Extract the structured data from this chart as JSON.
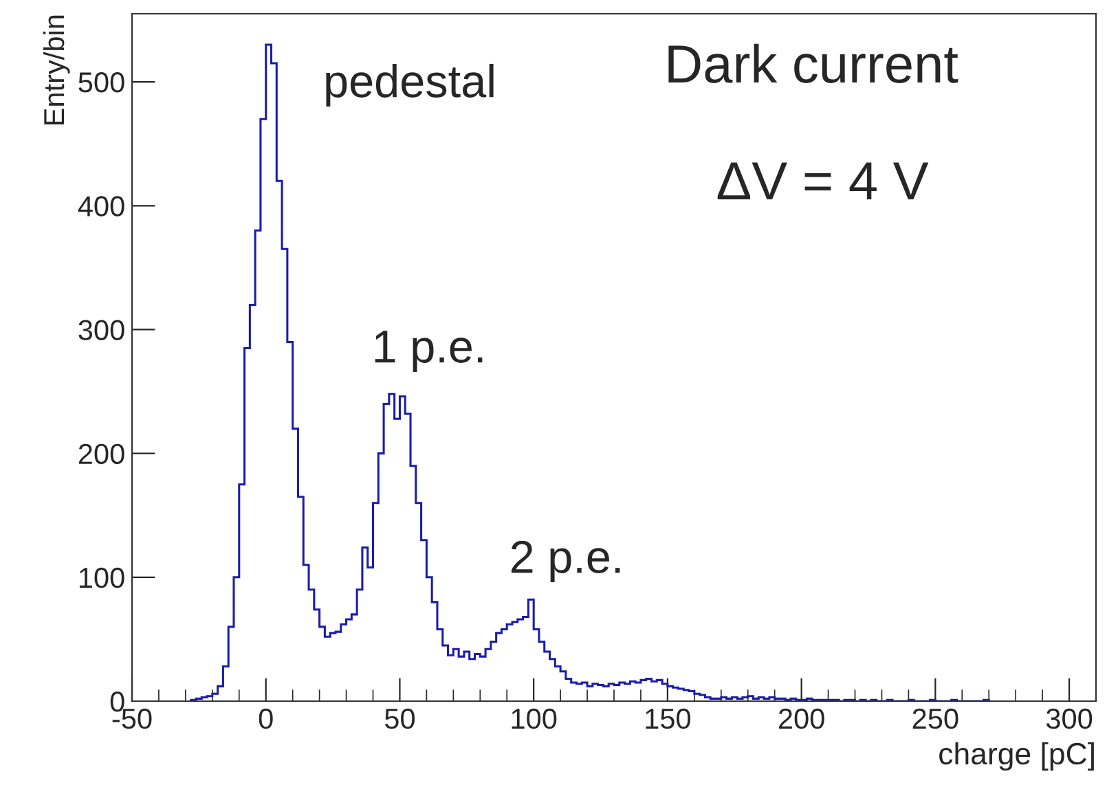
{
  "chart_data": {
    "type": "histogram",
    "title": "Dark current",
    "subtitle": "ΔV = 4 V",
    "xlabel": "charge [pC]",
    "ylabel": "Entry/bin",
    "color": "#1c1caa",
    "bins": [
      -28,
      -26,
      -24,
      -22,
      -20,
      -18,
      -16,
      -14,
      -12,
      -10,
      -8,
      -6,
      -4,
      -2,
      0,
      2,
      4,
      6,
      8,
      10,
      12,
      14,
      16,
      18,
      20,
      22,
      24,
      26,
      28,
      30,
      32,
      34,
      36,
      38,
      40,
      42,
      44,
      46,
      48,
      50,
      52,
      54,
      56,
      58,
      60,
      62,
      64,
      66,
      68,
      70,
      72,
      74,
      76,
      78,
      80,
      82,
      84,
      86,
      88,
      90,
      92,
      94,
      96,
      98,
      100,
      102,
      104,
      106,
      108,
      110,
      112,
      114,
      116,
      118,
      120,
      122,
      124,
      126,
      128,
      130,
      132,
      134,
      136,
      138,
      140,
      142,
      144,
      146,
      148,
      150,
      152,
      154,
      156,
      158,
      160,
      162,
      164,
      166,
      168,
      170,
      172,
      174,
      176,
      178,
      180,
      182,
      184,
      186,
      188,
      190,
      192,
      194,
      196,
      198,
      200,
      202,
      204,
      206,
      208,
      210,
      212,
      214,
      216,
      218,
      220,
      222,
      224,
      226,
      228,
      230,
      232,
      234,
      236,
      238,
      240,
      242,
      244,
      246,
      248,
      250,
      252,
      254,
      256,
      258,
      260,
      262,
      264,
      266,
      268,
      270
    ],
    "values": [
      1,
      2,
      3,
      4,
      6,
      12,
      28,
      60,
      100,
      175,
      285,
      320,
      380,
      470,
      530,
      515,
      420,
      365,
      290,
      220,
      165,
      110,
      90,
      74,
      60,
      52,
      55,
      56,
      62,
      66,
      70,
      90,
      124,
      108,
      160,
      200,
      240,
      248,
      228,
      246,
      232,
      190,
      160,
      130,
      100,
      80,
      58,
      45,
      37,
      42,
      36,
      40,
      34,
      38,
      36,
      42,
      48,
      55,
      58,
      62,
      64,
      66,
      68,
      82,
      58,
      48,
      40,
      34,
      28,
      24,
      18,
      15,
      14,
      15,
      12,
      14,
      13,
      12,
      14,
      13,
      15,
      14,
      16,
      15,
      17,
      18,
      16,
      17,
      14,
      12,
      11,
      10,
      9,
      8,
      6,
      5,
      3,
      2,
      2,
      3,
      2,
      3,
      2,
      3,
      4,
      2,
      3,
      2,
      3,
      2,
      2,
      1,
      2,
      1,
      1,
      2,
      1,
      1,
      1,
      1,
      1,
      0,
      1,
      1,
      0,
      1,
      0,
      1,
      0,
      0,
      1,
      0,
      0,
      0,
      1,
      0,
      0,
      0,
      1,
      0,
      0,
      0,
      1,
      0,
      0,
      0,
      0,
      0,
      1
    ],
    "xlim": [
      -50,
      310
    ],
    "ylim": [
      0,
      555
    ],
    "xticks": [
      -50,
      0,
      50,
      100,
      150,
      200,
      250,
      300
    ],
    "yticks": [
      0,
      100,
      200,
      300,
      400,
      500
    ],
    "grid": false,
    "legend": false,
    "annotations": [
      "pedestal",
      "1 p.e.",
      "2 p.e."
    ]
  }
}
